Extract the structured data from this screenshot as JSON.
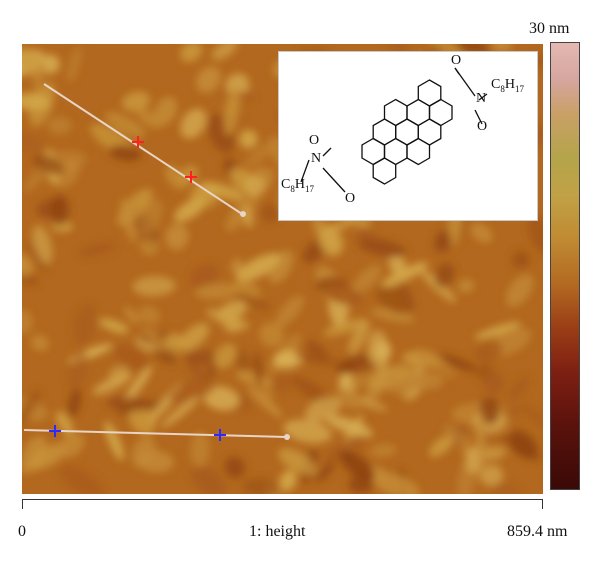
{
  "colorbar": {
    "max_label": "30 nm"
  },
  "scale": {
    "start_label": "0",
    "channel_label": "1: height",
    "end_label": "859.4 nm"
  },
  "inset": {
    "atoms": {
      "oxygen": "O",
      "nitrogen": "N",
      "carbon": "C"
    },
    "substituent": {
      "base": "C",
      "sub_8": "8",
      "hydrogen": "H",
      "sub_17": "17"
    }
  },
  "colors": {
    "afm_base": "#b2681e",
    "profile_line": "#e8d4c8",
    "cursor_red": "#ff2020",
    "cursor_blue": "#2a2aff"
  }
}
